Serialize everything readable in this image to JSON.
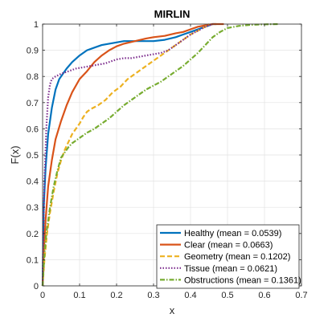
{
  "chart_data": {
    "type": "line",
    "title": "MIRLIN",
    "xlabel": "x",
    "ylabel": "F(x)",
    "xlim": [
      0,
      0.7
    ],
    "ylim": [
      0,
      1
    ],
    "xticks": [
      "0",
      "0.1",
      "0.2",
      "0.3",
      "0.4",
      "0.5",
      "0.6",
      "0.7"
    ],
    "yticks": [
      "0",
      "0.1",
      "0.2",
      "0.3",
      "0.4",
      "0.5",
      "0.6",
      "0.7",
      "0.8",
      "0.9",
      "1"
    ],
    "grid": true,
    "legend_position": "bottom-right",
    "series": [
      {
        "name": "Healthy (mean = 0.0539)",
        "color": "#0072BD",
        "dash": "solid",
        "x": [
          0,
          0.003,
          0.008,
          0.015,
          0.025,
          0.035,
          0.045,
          0.055,
          0.065,
          0.08,
          0.1,
          0.12,
          0.14,
          0.16,
          0.18,
          0.2,
          0.22,
          0.25,
          0.3,
          0.33,
          0.36,
          0.38,
          0.4,
          0.42,
          0.44,
          0.46,
          0.47
        ],
        "y": [
          0,
          0.3,
          0.45,
          0.58,
          0.68,
          0.75,
          0.79,
          0.81,
          0.83,
          0.855,
          0.88,
          0.9,
          0.91,
          0.92,
          0.925,
          0.93,
          0.935,
          0.935,
          0.935,
          0.94,
          0.95,
          0.96,
          0.97,
          0.98,
          0.99,
          1.0,
          1.0
        ]
      },
      {
        "name": "Clear (mean = 0.0663)",
        "color": "#D95319",
        "dash": "solid",
        "x": [
          0,
          0.003,
          0.008,
          0.015,
          0.025,
          0.035,
          0.05,
          0.065,
          0.08,
          0.1,
          0.12,
          0.14,
          0.16,
          0.18,
          0.2,
          0.22,
          0.25,
          0.28,
          0.3,
          0.33,
          0.36,
          0.38,
          0.4,
          0.42,
          0.44,
          0.46,
          0.48,
          0.49
        ],
        "y": [
          0,
          0.12,
          0.25,
          0.38,
          0.48,
          0.56,
          0.63,
          0.69,
          0.74,
          0.79,
          0.82,
          0.855,
          0.88,
          0.9,
          0.915,
          0.925,
          0.935,
          0.945,
          0.95,
          0.955,
          0.965,
          0.97,
          0.98,
          0.99,
          0.995,
          1.0,
          1.0,
          1.0
        ]
      },
      {
        "name": "Geometry (mean = 0.1202)",
        "color": "#EDB120",
        "dash": "dashed",
        "x": [
          0,
          0.005,
          0.012,
          0.02,
          0.03,
          0.04,
          0.05,
          0.06,
          0.07,
          0.08,
          0.09,
          0.1,
          0.11,
          0.12,
          0.13,
          0.15,
          0.17,
          0.19,
          0.21,
          0.23,
          0.25,
          0.27,
          0.3,
          0.32,
          0.34,
          0.36,
          0.38,
          0.4,
          0.42,
          0.44,
          0.45
        ],
        "y": [
          0,
          0.1,
          0.2,
          0.28,
          0.36,
          0.43,
          0.48,
          0.52,
          0.55,
          0.58,
          0.6,
          0.62,
          0.645,
          0.665,
          0.675,
          0.69,
          0.71,
          0.74,
          0.76,
          0.79,
          0.81,
          0.83,
          0.86,
          0.88,
          0.9,
          0.92,
          0.94,
          0.96,
          0.975,
          0.99,
          1.0
        ]
      },
      {
        "name": "Tissue (mean = 0.0621)",
        "color": "#7E2F8E",
        "dash": "dotted",
        "x": [
          0,
          0.002,
          0.005,
          0.01,
          0.015,
          0.02,
          0.025,
          0.035,
          0.05,
          0.07,
          0.09,
          0.11,
          0.13,
          0.15,
          0.17,
          0.19,
          0.2,
          0.22,
          0.24,
          0.26,
          0.28,
          0.3,
          0.32,
          0.34,
          0.36,
          0.38,
          0.4,
          0.42,
          0.44,
          0.46
        ],
        "y": [
          0,
          0.2,
          0.4,
          0.6,
          0.72,
          0.77,
          0.79,
          0.8,
          0.81,
          0.82,
          0.83,
          0.835,
          0.84,
          0.845,
          0.85,
          0.86,
          0.865,
          0.87,
          0.87,
          0.875,
          0.88,
          0.885,
          0.89,
          0.9,
          0.92,
          0.94,
          0.96,
          0.975,
          0.99,
          1.0
        ]
      },
      {
        "name": "Obstructions (mean = 0.1361)",
        "color": "#77AC30",
        "dash": "dashdot",
        "x": [
          0,
          0.005,
          0.01,
          0.02,
          0.03,
          0.04,
          0.05,
          0.06,
          0.07,
          0.08,
          0.09,
          0.1,
          0.12,
          0.14,
          0.16,
          0.18,
          0.2,
          0.22,
          0.24,
          0.26,
          0.28,
          0.3,
          0.32,
          0.34,
          0.36,
          0.38,
          0.4,
          0.42,
          0.44,
          0.46,
          0.48,
          0.5,
          0.53,
          0.56,
          0.6,
          0.64
        ],
        "y": [
          0,
          0.12,
          0.2,
          0.3,
          0.38,
          0.44,
          0.49,
          0.51,
          0.53,
          0.545,
          0.555,
          0.565,
          0.585,
          0.6,
          0.62,
          0.64,
          0.665,
          0.69,
          0.71,
          0.73,
          0.75,
          0.765,
          0.78,
          0.8,
          0.82,
          0.84,
          0.865,
          0.89,
          0.92,
          0.95,
          0.97,
          0.985,
          0.993,
          0.997,
          0.999,
          1.0
        ]
      }
    ]
  }
}
